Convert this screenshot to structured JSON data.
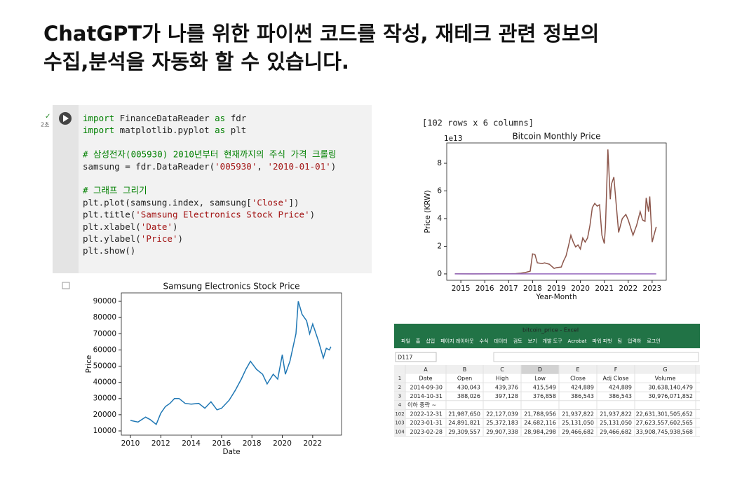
{
  "slide": {
    "title_lines": [
      "ChatGPT가 나를 위한  파이썬 코드를 작성, 재테크 관련 정보의",
      "수집,분석을 자동화 할 수 있습니다."
    ]
  },
  "notebook": {
    "run_time": "2초",
    "output_note": "[102 rows x 6 columns]",
    "code_lines": [
      [
        [
          "import",
          "#008000"
        ],
        [
          " FinanceDataReader ",
          "#222222"
        ],
        [
          "as",
          "#008000"
        ],
        [
          " fdr",
          "#222222"
        ]
      ],
      [
        [
          "import",
          "#008000"
        ],
        [
          " matplotlib.pyplot ",
          "#222222"
        ],
        [
          "as",
          "#008000"
        ],
        [
          " plt",
          "#222222"
        ]
      ],
      [],
      [
        [
          "# 삼성전자(005930) 2010년부터 현재까지의 주식 가격 크롤링",
          "#008000"
        ]
      ],
      [
        [
          "samsung = fdr.DataReader(",
          "#222222"
        ],
        [
          "'005930'",
          "#a31515"
        ],
        [
          ", ",
          "#222222"
        ],
        [
          "'2010-01-01'",
          "#a31515"
        ],
        [
          ")",
          "#222222"
        ]
      ],
      [],
      [
        [
          "# 그래프 그리기",
          "#008000"
        ]
      ],
      [
        [
          "plt.plot(samsung.index, samsung[",
          "#222222"
        ],
        [
          "'Close'",
          "#a31515"
        ],
        [
          "])",
          "#222222"
        ]
      ],
      [
        [
          "plt.title(",
          "#222222"
        ],
        [
          "'Samsung Electronics Stock Price'",
          "#a31515"
        ],
        [
          ")",
          "#222222"
        ]
      ],
      [
        [
          "plt.xlabel(",
          "#222222"
        ],
        [
          "'Date'",
          "#a31515"
        ],
        [
          ")",
          "#222222"
        ]
      ],
      [
        [
          "plt.ylabel(",
          "#222222"
        ],
        [
          "'Price'",
          "#a31515"
        ],
        [
          ")",
          "#222222"
        ]
      ],
      [
        [
          "plt.show()",
          "#222222"
        ]
      ]
    ]
  },
  "chart_data": [
    {
      "type": "line",
      "title": "Samsung Electronics Stock Price",
      "x_label": "Date",
      "y_label": "Price",
      "xlim": [
        2009.4,
        2023.9
      ],
      "xticks": [
        2010,
        2012,
        2014,
        2016,
        2018,
        2020,
        2022
      ],
      "ylim": [
        7400,
        95200
      ],
      "yticks": [
        10000,
        20000,
        30000,
        40000,
        50000,
        60000,
        70000,
        80000,
        90000
      ],
      "series": [
        {
          "color": "#1f77b4",
          "x": [
            2010.0,
            2010.5,
            2011.0,
            2011.3,
            2011.7,
            2012.0,
            2012.3,
            2012.6,
            2012.9,
            2013.2,
            2013.6,
            2014.0,
            2014.5,
            2014.9,
            2015.3,
            2015.7,
            2016.0,
            2016.5,
            2016.9,
            2017.3,
            2017.6,
            2017.9,
            2018.3,
            2018.7,
            2019.0,
            2019.4,
            2019.7,
            2020.0,
            2020.2,
            2020.5,
            2020.9,
            2021.05,
            2021.3,
            2021.6,
            2021.8,
            2022.0,
            2022.4,
            2022.7,
            2022.9,
            2023.1,
            2023.2
          ],
          "values": [
            16500,
            15500,
            18500,
            17000,
            14000,
            21000,
            25000,
            27000,
            30000,
            30000,
            27000,
            26500,
            27000,
            24000,
            28000,
            23000,
            24000,
            29000,
            35000,
            42000,
            48000,
            53000,
            48000,
            45000,
            39000,
            45000,
            42000,
            57000,
            45000,
            53000,
            70000,
            90000,
            82000,
            78000,
            70000,
            76000,
            65000,
            55000,
            61000,
            60000,
            62000
          ]
        }
      ]
    },
    {
      "type": "line",
      "title": "Bitcoin Monthly Price",
      "x_label": "Year-Month",
      "y_label": "Price (KRW)",
      "y_offset_label": "1e13",
      "xlim": [
        2014.41,
        2023.59
      ],
      "xticks": [
        2015,
        2016,
        2017,
        2018,
        2019,
        2020,
        2021,
        2022,
        2023
      ],
      "ylim": [
        -0.46,
        9.47
      ],
      "yticks": [
        0,
        2,
        4,
        6,
        8
      ],
      "series": [
        {
          "color": "#8c564b",
          "x": [
            2014.75,
            2015.5,
            2016.5,
            2017.0,
            2017.3,
            2017.5,
            2017.7,
            2017.9,
            2018.0,
            2018.1,
            2018.2,
            2018.4,
            2018.5,
            2018.7,
            2018.9,
            2019.0,
            2019.2,
            2019.3,
            2019.4,
            2019.5,
            2019.6,
            2019.7,
            2019.8,
            2019.9,
            2020.0,
            2020.1,
            2020.2,
            2020.3,
            2020.4,
            2020.5,
            2020.6,
            2020.7,
            2020.8,
            2020.9,
            2021.0,
            2021.05,
            2021.15,
            2021.25,
            2021.3,
            2021.4,
            2021.6,
            2021.75,
            2021.9,
            2022.0,
            2022.2,
            2022.35,
            2022.5,
            2022.6,
            2022.7,
            2022.75,
            2022.85,
            2022.9,
            2023.0,
            2023.17
          ],
          "values": [
            0.004,
            0.003,
            0.007,
            0.01,
            0.02,
            0.05,
            0.1,
            0.2,
            1.45,
            1.4,
            0.8,
            0.75,
            0.8,
            0.7,
            0.4,
            0.45,
            0.5,
            0.95,
            1.3,
            2.0,
            2.8,
            2.3,
            1.95,
            2.1,
            1.8,
            2.6,
            2.3,
            2.6,
            3.5,
            4.8,
            5.1,
            4.9,
            5.0,
            2.8,
            2.2,
            3.5,
            9.0,
            5.4,
            6.5,
            7.0,
            3.0,
            4.0,
            4.3,
            3.9,
            2.8,
            3.5,
            4.5,
            3.9,
            3.8,
            5.5,
            4.5,
            5.6,
            2.3,
            3.4
          ]
        },
        {
          "color": "#9467bd",
          "x": [
            2014.75,
            2017.0,
            2020.0,
            2023.17
          ],
          "values": [
            0,
            0,
            0,
            0
          ]
        }
      ]
    }
  ],
  "spreadsheet": {
    "window_title": "bitcoin_price - Excel",
    "ribbon_tabs": [
      "파일",
      "홈",
      "삽입",
      "페이지 레이아웃",
      "수식",
      "데이터",
      "검토",
      "보기",
      "개발 도구",
      "Acrobat",
      "파워 피벗",
      "팀",
      "입력하",
      "로그인"
    ],
    "name_box": "D117",
    "columns": [
      "A",
      "B",
      "C",
      "D",
      "E",
      "F",
      "G"
    ],
    "row_numbers": [
      "1",
      "2",
      "3",
      "4",
      "102",
      "103",
      "104"
    ],
    "rows": [
      [
        "Date",
        "Open",
        "High",
        "Low",
        "Close",
        "Adj Close",
        "Volume"
      ],
      [
        "2014-09-30",
        "430,043",
        "439,376",
        "415,549",
        "424,889",
        "424,889",
        "30,638,140,479"
      ],
      [
        "2014-10-31",
        "388,026",
        "397,128",
        "376,858",
        "386,543",
        "386,543",
        "30,976,071,852"
      ],
      [
        "이하 중략 ~",
        null,
        null,
        null,
        null,
        null,
        null
      ],
      [
        "2022-12-31",
        "21,987,650",
        "22,127,039",
        "21,788,956",
        "21,937,822",
        "21,937,822",
        "22,631,301,505,652"
      ],
      [
        "2023-01-31",
        "24,891,821",
        "25,372,183",
        "24,682,116",
        "25,131,050",
        "25,131,050",
        "27,623,557,602,565"
      ],
      [
        "2023-02-28",
        "29,309,557",
        "29,907,338",
        "28,984,298",
        "29,466,682",
        "29,466,682",
        "33,908,745,938,568"
      ]
    ]
  }
}
